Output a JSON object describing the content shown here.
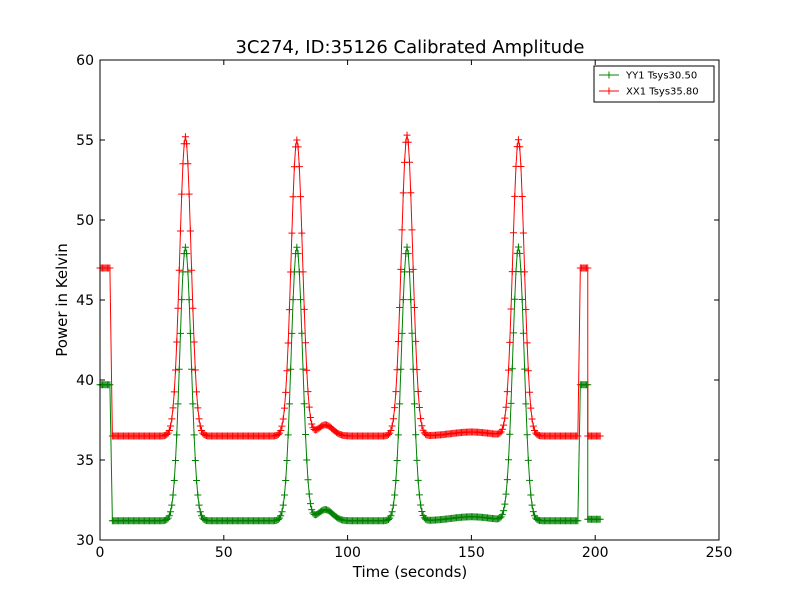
{
  "chart_data": {
    "type": "line",
    "title": "3C274, ID:35126 Calibrated Amplitude",
    "xlabel": "Time (seconds)",
    "ylabel": "Power in Kelvin",
    "xlim": [
      0,
      250
    ],
    "ylim": [
      30,
      60
    ],
    "xticks": [
      0,
      50,
      100,
      150,
      200,
      250
    ],
    "yticks": [
      30,
      35,
      40,
      45,
      50,
      55,
      60
    ],
    "grid": false,
    "legend_position": "top-right",
    "marker": "+",
    "series": [
      {
        "name": "YY1 Tsys30.50",
        "color": "#008000",
        "segments": [
          {
            "x_start": 0,
            "x_end": 4,
            "y": 39.7
          },
          {
            "x_start": 5,
            "x_end": 193,
            "baseline": 31.2,
            "peaks": [
              {
                "x": 34.5,
                "height": 48.3,
                "width": 2.3
              },
              {
                "x": 79.5,
                "height": 48.3,
                "width": 2.3
              },
              {
                "x": 124.0,
                "height": 48.3,
                "width": 2.3
              },
              {
                "x": 169.0,
                "height": 48.3,
                "width": 2.3
              }
            ],
            "bumps": [
              {
                "x": 91.0,
                "height": 0.7,
                "width": 3.0
              },
              {
                "x": 150.0,
                "height": 0.25,
                "width": 8.0
              }
            ]
          },
          {
            "x_start": 194,
            "x_end": 197,
            "y": 39.7
          },
          {
            "x_start": 197,
            "x_end": 202,
            "y": 31.3
          }
        ]
      },
      {
        "name": "XX1 Tsys35.80",
        "color": "#ff0000",
        "segments": [
          {
            "x_start": 0,
            "x_end": 4,
            "y": 47.0
          },
          {
            "x_start": 5,
            "x_end": 193,
            "baseline": 36.5,
            "peaks": [
              {
                "x": 34.5,
                "height": 55.2,
                "width": 2.3
              },
              {
                "x": 79.5,
                "height": 55.0,
                "width": 2.3
              },
              {
                "x": 124.0,
                "height": 55.3,
                "width": 2.3
              },
              {
                "x": 169.0,
                "height": 55.0,
                "width": 2.3
              }
            ],
            "bumps": [
              {
                "x": 91.0,
                "height": 0.7,
                "width": 3.0
              },
              {
                "x": 150.0,
                "height": 0.25,
                "width": 8.0
              }
            ]
          },
          {
            "x_start": 194,
            "x_end": 197,
            "y": 47.0
          },
          {
            "x_start": 197,
            "x_end": 202,
            "y": 36.5
          }
        ]
      }
    ]
  }
}
